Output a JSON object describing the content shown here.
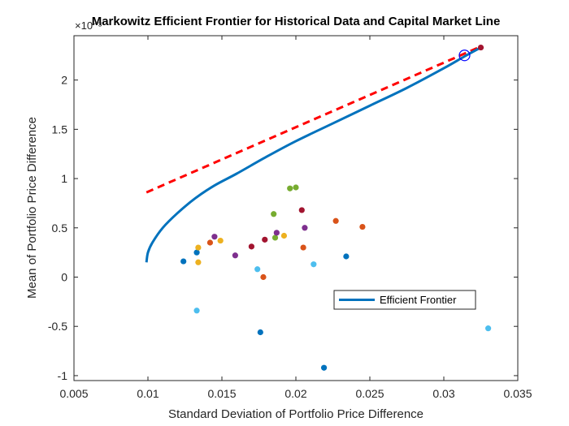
{
  "chart_data": {
    "type": "scatter",
    "title": "Markowitz Efficient Frontier for Historical Data and Capital Market Line",
    "xlabel": "Standard Deviation of Portfolio Price Difference",
    "ylabel": "Mean of Portfolio Price Difference",
    "y_exponent_label": "×10⁻³",
    "xlim": [
      0.005,
      0.035
    ],
    "ylim": [
      -1.05,
      2.45
    ],
    "xticks": [
      0.005,
      0.01,
      0.015,
      0.02,
      0.025,
      0.03,
      0.035
    ],
    "xtick_labels": [
      "0.005",
      "0.01",
      "0.015",
      "0.02",
      "0.025",
      "0.03",
      "0.035"
    ],
    "yticks": [
      -1,
      -0.5,
      0,
      0.5,
      1,
      1.5,
      2
    ],
    "ytick_labels": [
      "-1",
      "-0.5",
      "0",
      "0.5",
      "1",
      "1.5",
      "2"
    ],
    "grid": false,
    "legend": {
      "placement": "lower-right",
      "entries": [
        "Efficient Frontier"
      ]
    },
    "colors": {
      "frontier": "#0072BD",
      "cml": "#FF0000",
      "tangency": "#0000FF",
      "asset_palette": [
        "#0072BD",
        "#D95319",
        "#EDB120",
        "#7E2F8E",
        "#77AC30",
        "#4DBEEE",
        "#A2142F"
      ]
    },
    "efficient_frontier": {
      "name": "Efficient Frontier",
      "x": [
        0.0099,
        0.01,
        0.0103,
        0.011,
        0.012,
        0.0132,
        0.0145,
        0.016,
        0.018,
        0.02,
        0.0225,
        0.025,
        0.0275,
        0.03,
        0.0314,
        0.0325
      ],
      "y": [
        0.15,
        0.25,
        0.35,
        0.5,
        0.65,
        0.8,
        0.93,
        1.05,
        1.22,
        1.38,
        1.56,
        1.74,
        1.92,
        2.12,
        2.24,
        2.33
      ]
    },
    "capital_market_line": {
      "x": [
        0.0099,
        0.0325
      ],
      "y": [
        0.86,
        2.34
      ]
    },
    "tangency_point": {
      "x": 0.0314,
      "y": 2.25
    },
    "assets": [
      {
        "x": 0.0124,
        "y": 0.16,
        "c": 0
      },
      {
        "x": 0.0133,
        "y": 0.25,
        "c": 0
      },
      {
        "x": 0.0134,
        "y": 0.3,
        "c": 2
      },
      {
        "x": 0.0134,
        "y": 0.15,
        "c": 2
      },
      {
        "x": 0.0133,
        "y": -0.34,
        "c": 5
      },
      {
        "x": 0.0142,
        "y": 0.35,
        "c": 1
      },
      {
        "x": 0.0145,
        "y": 0.41,
        "c": 3
      },
      {
        "x": 0.0149,
        "y": 0.37,
        "c": 2
      },
      {
        "x": 0.0159,
        "y": 0.22,
        "c": 3
      },
      {
        "x": 0.017,
        "y": 0.31,
        "c": 6
      },
      {
        "x": 0.0174,
        "y": 0.08,
        "c": 5
      },
      {
        "x": 0.0176,
        "y": -0.56,
        "c": 0
      },
      {
        "x": 0.0178,
        "y": 0.0,
        "c": 1
      },
      {
        "x": 0.0179,
        "y": 0.38,
        "c": 6
      },
      {
        "x": 0.0185,
        "y": 0.64,
        "c": 4
      },
      {
        "x": 0.0186,
        "y": 0.4,
        "c": 4
      },
      {
        "x": 0.0187,
        "y": 0.45,
        "c": 3
      },
      {
        "x": 0.0192,
        "y": 0.42,
        "c": 2
      },
      {
        "x": 0.0196,
        "y": 0.9,
        "c": 4
      },
      {
        "x": 0.02,
        "y": 0.91,
        "c": 4
      },
      {
        "x": 0.0204,
        "y": 0.68,
        "c": 6
      },
      {
        "x": 0.0205,
        "y": 0.3,
        "c": 1
      },
      {
        "x": 0.0206,
        "y": 0.5,
        "c": 3
      },
      {
        "x": 0.0212,
        "y": 0.13,
        "c": 5
      },
      {
        "x": 0.0219,
        "y": -0.92,
        "c": 0
      },
      {
        "x": 0.0227,
        "y": 0.57,
        "c": 1
      },
      {
        "x": 0.0234,
        "y": 0.21,
        "c": 0
      },
      {
        "x": 0.0245,
        "y": 0.51,
        "c": 1
      },
      {
        "x": 0.0325,
        "y": 2.33,
        "c": 6
      },
      {
        "x": 0.033,
        "y": -0.52,
        "c": 5
      }
    ]
  }
}
